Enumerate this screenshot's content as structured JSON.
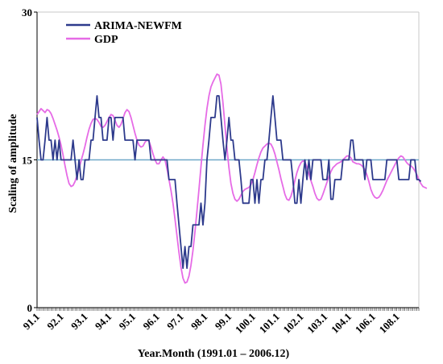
{
  "chart_data": {
    "type": "line",
    "xlabel": "Year.Month (1991.01 – 2006.12)",
    "ylabel": "Scaling of amplitude",
    "ylim": [
      0,
      30
    ],
    "yticks": [
      "0",
      "15",
      "30"
    ],
    "xlim": [
      0,
      191
    ],
    "x_tick_labels": [
      "91.1",
      "92.1",
      "93.1",
      "94.1",
      "95.1",
      "96.1",
      "97.1",
      "98.1",
      "99.1",
      "100.1",
      "101.1",
      "102.1",
      "103.1",
      "104.1",
      "106.1",
      "108.1"
    ],
    "x_tick_index": [
      0,
      12,
      24,
      36,
      48,
      60,
      72,
      84,
      96,
      108,
      120,
      132,
      144,
      156,
      168,
      180
    ],
    "reference_line": {
      "y": 15,
      "color": "#6fa8c8"
    },
    "legend": {
      "position": "top-left"
    },
    "grid": false,
    "series": [
      {
        "name": "ARIMA-NEWFM",
        "color": "#2d3a8c",
        "values": [
          19.3,
          17.0,
          15.0,
          15.0,
          17.0,
          19.3,
          17.0,
          17.0,
          15.0,
          17.0,
          15.0,
          17.0,
          15.0,
          15.0,
          15.0,
          15.0,
          15.0,
          15.0,
          17.0,
          15.0,
          13.0,
          15.0,
          13.0,
          13.0,
          15.0,
          15.0,
          15.0,
          17.0,
          17.0,
          19.3,
          21.5,
          19.3,
          19.3,
          17.0,
          17.0,
          17.0,
          19.3,
          19.3,
          17.0,
          19.3,
          19.3,
          19.3,
          19.3,
          19.3,
          17.0,
          17.0,
          17.0,
          17.0,
          17.0,
          15.0,
          17.0,
          17.0,
          17.0,
          17.0,
          17.0,
          17.0,
          17.0,
          15.0,
          15.0,
          15.0,
          15.0,
          15.0,
          15.0,
          15.0,
          15.0,
          15.0,
          13.0,
          13.0,
          13.0,
          13.0,
          10.6,
          8.4,
          6.2,
          4.0,
          6.2,
          4.0,
          6.2,
          6.2,
          8.4,
          8.4,
          8.4,
          8.4,
          10.6,
          8.4,
          10.6,
          15.0,
          17.0,
          19.3,
          19.3,
          19.3,
          21.5,
          21.5,
          19.3,
          17.0,
          15.0,
          17.0,
          19.3,
          17.0,
          17.0,
          15.0,
          15.0,
          15.0,
          13.0,
          10.6,
          10.6,
          10.6,
          10.6,
          13.0,
          13.0,
          10.6,
          13.0,
          10.6,
          13.0,
          13.0,
          15.0,
          15.0,
          17.0,
          19.3,
          21.5,
          19.3,
          17.0,
          17.0,
          17.0,
          15.0,
          15.0,
          15.0,
          15.0,
          15.0,
          13.0,
          10.6,
          10.6,
          13.0,
          10.6,
          13.0,
          15.0,
          13.0,
          15.0,
          13.0,
          15.0,
          15.0,
          15.0,
          15.0,
          15.0,
          13.0,
          13.0,
          13.0,
          15.0,
          11.0,
          11.0,
          13.0,
          13.0,
          13.0,
          13.0,
          15.0,
          15.0,
          15.0,
          15.0,
          17.0,
          17.0,
          15.0,
          15.0,
          15.0,
          15.0,
          15.0,
          13.0,
          15.0,
          15.0,
          15.0,
          13.0,
          13.0,
          13.0,
          13.0,
          13.0,
          13.0,
          13.0,
          15.0,
          15.0,
          15.0,
          15.0,
          15.0,
          15.0,
          13.0,
          13.0,
          13.0,
          13.0,
          13.0,
          13.0,
          15.0,
          15.0,
          15.0,
          13.0,
          13.0,
          12.8
        ]
      },
      {
        "name": "GDP",
        "color": "#e66be6",
        "values": [
          19.6,
          19.9,
          20.2,
          20.0,
          19.8,
          20.1,
          20.0,
          19.7,
          19.2,
          18.6,
          18.0,
          17.3,
          16.5,
          15.5,
          14.4,
          13.4,
          12.6,
          12.3,
          12.4,
          12.8,
          13.4,
          14.1,
          14.9,
          15.6,
          16.4,
          17.3,
          18.1,
          18.7,
          19.1,
          19.2,
          19.1,
          18.8,
          18.4,
          18.3,
          18.5,
          18.9,
          19.3,
          19.6,
          19.5,
          19.0,
          18.5,
          18.3,
          18.6,
          19.2,
          19.8,
          20.1,
          19.9,
          19.3,
          18.5,
          17.7,
          17.0,
          16.5,
          16.3,
          16.4,
          16.8,
          17.0,
          16.9,
          16.3,
          15.6,
          15.0,
          14.6,
          14.6,
          15.0,
          15.3,
          15.0,
          14.1,
          13.0,
          11.9,
          10.6,
          9.0,
          7.3,
          5.6,
          4.1,
          3.0,
          2.5,
          2.6,
          3.2,
          4.3,
          5.8,
          7.7,
          9.8,
          12.0,
          14.3,
          16.5,
          18.5,
          20.2,
          21.5,
          22.4,
          22.9,
          23.3,
          23.7,
          23.6,
          22.7,
          20.8,
          18.5,
          16.2,
          14.2,
          12.6,
          11.6,
          11.0,
          10.8,
          11.0,
          11.4,
          11.8,
          12.0,
          12.1,
          12.2,
          12.5,
          13.0,
          13.7,
          14.5,
          15.2,
          15.8,
          16.2,
          16.4,
          16.6,
          16.7,
          16.6,
          16.2,
          15.6,
          14.8,
          14.0,
          13.1,
          12.3,
          11.5,
          11.0,
          10.9,
          11.3,
          12.0,
          12.9,
          13.7,
          14.3,
          14.7,
          14.9,
          14.8,
          14.3,
          13.6,
          12.9,
          12.3,
          11.6,
          11.1,
          10.9,
          11.0,
          11.5,
          12.1,
          12.7,
          13.3,
          13.8,
          14.2,
          14.4,
          14.6,
          14.7,
          14.8,
          15.0,
          15.2,
          15.4,
          15.4,
          15.2,
          14.8,
          14.7,
          14.6,
          14.6,
          14.5,
          14.3,
          14.0,
          13.5,
          12.8,
          12.0,
          11.5,
          11.2,
          11.1,
          11.2,
          11.5,
          11.9,
          12.4,
          12.9,
          13.3,
          13.7,
          14.1,
          14.5,
          14.9,
          15.2,
          15.4,
          15.3,
          15.0,
          14.7,
          14.5,
          14.4,
          14.2,
          13.9,
          13.5,
          13.0,
          12.6,
          12.3,
          12.2,
          12.1
        ]
      }
    ]
  }
}
